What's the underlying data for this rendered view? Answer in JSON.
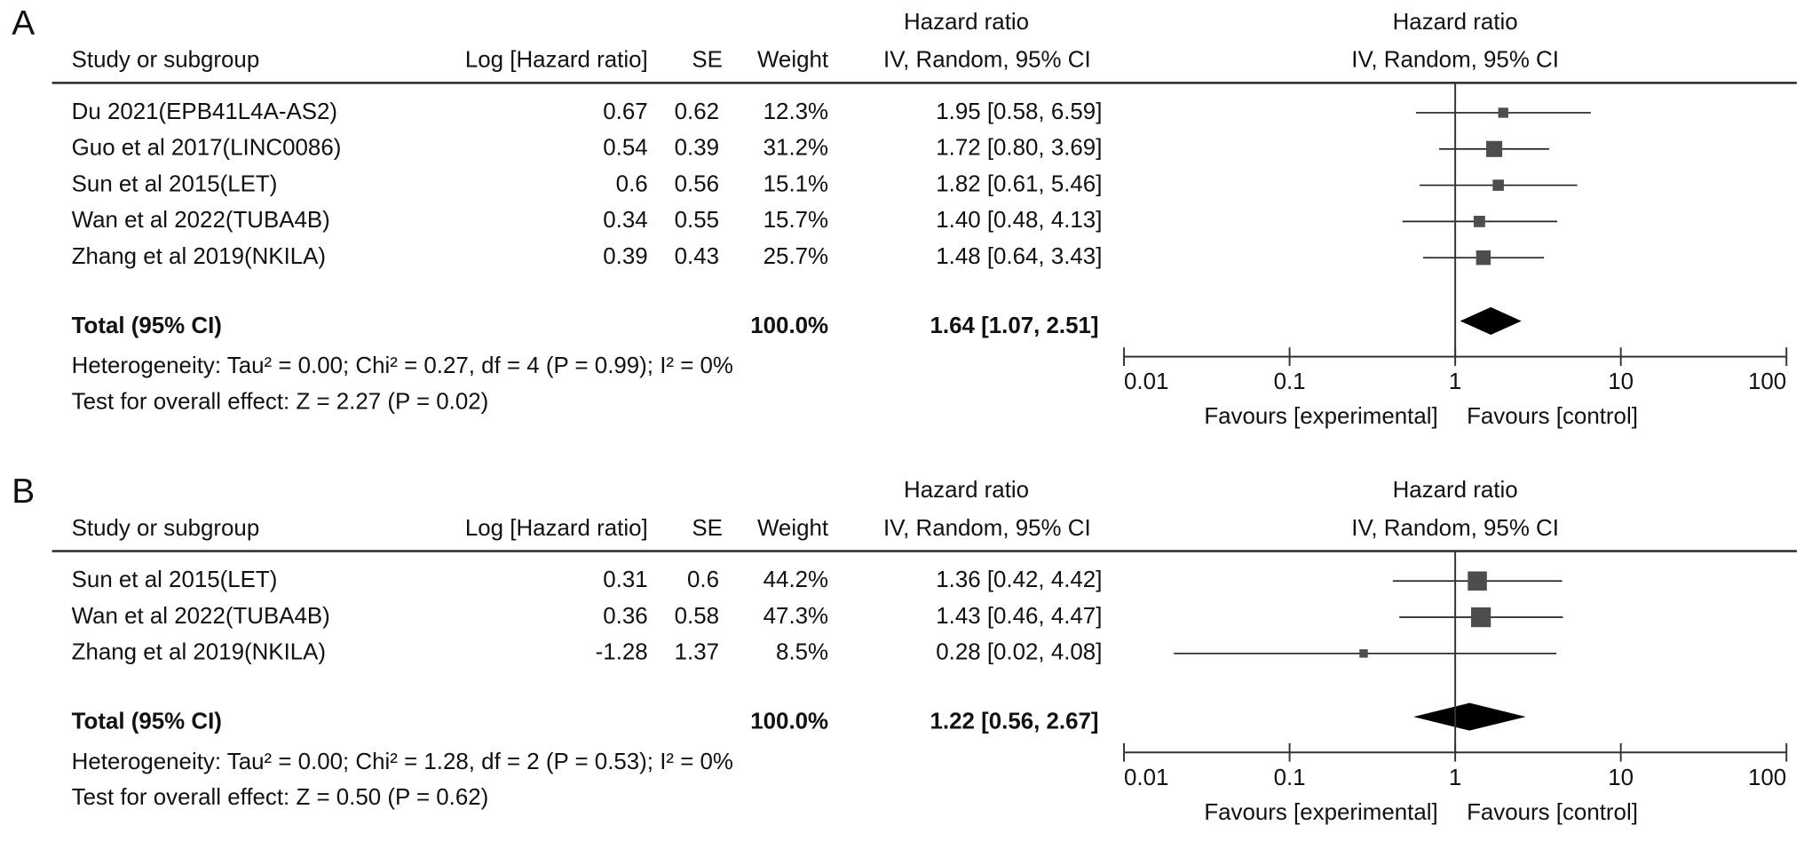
{
  "chart_data": [
    {
      "type": "forest",
      "panel_label": "A",
      "columns": {
        "study": "Study or subgroup",
        "log_hr": "Log [Hazard ratio]",
        "se": "SE",
        "weight": "Weight",
        "ci_title": "Hazard ratio",
        "ci_subtitle": "IV, Random, 95% CI"
      },
      "plot_title": "Hazard ratio",
      "plot_subtitle": "IV, Random, 95% CI",
      "studies": [
        "Du 2021(EPB41L4A-AS2)",
        "Guo et al 2017(LINC0086)",
        "Sun et al 2015(LET)",
        "Wan et al 2022(TUBA4B)",
        "Zhang et al 2019(NKILA)"
      ],
      "log_hr": [
        0.67,
        0.54,
        0.6,
        0.34,
        0.39
      ],
      "se": [
        0.62,
        0.39,
        0.56,
        0.55,
        0.43
      ],
      "weights": [
        12.3,
        31.2,
        15.1,
        15.7,
        25.7
      ],
      "weight_labels": [
        "12.3%",
        "31.2%",
        "15.1%",
        "15.7%",
        "25.7%"
      ],
      "hr": [
        1.95,
        1.72,
        1.82,
        1.4,
        1.48
      ],
      "ci_low": [
        0.58,
        0.8,
        0.61,
        0.48,
        0.64
      ],
      "ci_high": [
        6.59,
        3.69,
        5.46,
        4.13,
        3.43
      ],
      "ci_labels": [
        "1.95 [0.58, 6.59]",
        "1.72 [0.80, 3.69]",
        "1.82 [0.61, 5.46]",
        "1.40 [0.48, 4.13]",
        "1.48 [0.64, 3.43]"
      ],
      "total": {
        "label": "Total (95% CI)",
        "weight_label": "100.0%",
        "hr": 1.64,
        "ci_low": 1.07,
        "ci_high": 2.51,
        "ci_label": "1.64 [1.07, 2.51]"
      },
      "heterogeneity": "Heterogeneity: Tau² = 0.00; Chi² = 0.27, df = 4 (P = 0.99); I² = 0%",
      "overall_effect": "Test for overall effect: Z = 2.27 (P = 0.02)",
      "xlim": [
        0.01,
        100
      ],
      "xticks": [
        0.01,
        0.1,
        1,
        10,
        100
      ],
      "log_x": true,
      "favours_left": "Favours [experimental]",
      "favours_right": "Favours [control]",
      "color": "#4d4d4d"
    },
    {
      "type": "forest",
      "panel_label": "B",
      "columns": {
        "study": "Study or subgroup",
        "log_hr": "Log [Hazard ratio]",
        "se": "SE",
        "weight": "Weight",
        "ci_title": "Hazard ratio",
        "ci_subtitle": "IV, Random, 95% CI"
      },
      "plot_title": "Hazard ratio",
      "plot_subtitle": "IV, Random, 95% CI",
      "studies": [
        "Sun et al 2015(LET)",
        "Wan et al 2022(TUBA4B)",
        "Zhang et al 2019(NKILA)"
      ],
      "log_hr": [
        0.31,
        0.36,
        -1.28
      ],
      "se": [
        0.6,
        0.58,
        1.37
      ],
      "weights": [
        44.2,
        47.3,
        8.5
      ],
      "weight_labels": [
        "44.2%",
        "47.3%",
        "8.5%"
      ],
      "hr": [
        1.36,
        1.43,
        0.28
      ],
      "ci_low": [
        0.42,
        0.46,
        0.02
      ],
      "ci_high": [
        4.42,
        4.47,
        4.08
      ],
      "ci_labels": [
        "1.36 [0.42, 4.42]",
        "1.43 [0.46, 4.47]",
        "0.28 [0.02, 4.08]"
      ],
      "total": {
        "label": "Total (95% CI)",
        "weight_label": "100.0%",
        "hr": 1.22,
        "ci_low": 0.56,
        "ci_high": 2.67,
        "ci_label": "1.22 [0.56, 2.67]"
      },
      "heterogeneity": "Heterogeneity: Tau² = 0.00; Chi² = 1.28, df = 2 (P = 0.53); I² = 0%",
      "overall_effect": "Test for overall effect: Z = 0.50 (P = 0.62)",
      "xlim": [
        0.01,
        100
      ],
      "xticks": [
        0.01,
        0.1,
        1,
        10,
        100
      ],
      "log_x": true,
      "favours_left": "Favours [experimental]",
      "favours_right": "Favours [control]",
      "color": "#4d4d4d"
    }
  ]
}
